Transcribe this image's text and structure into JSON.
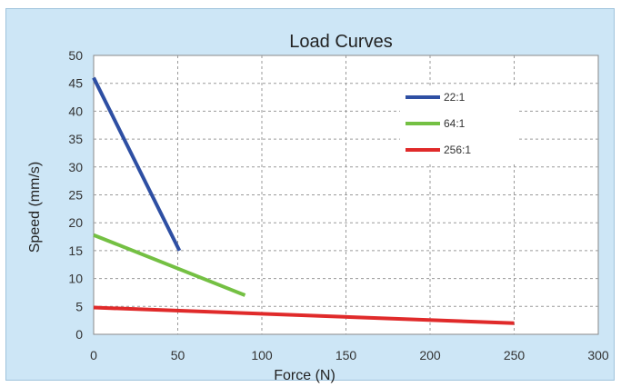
{
  "chart_data": {
    "type": "line",
    "title": "Load Curves",
    "xlabel": "Force (N)",
    "ylabel": "Speed (mm/s)",
    "xlim": [
      0,
      300
    ],
    "ylim": [
      0,
      50
    ],
    "xticks": [
      0,
      50,
      100,
      150,
      200,
      250,
      300
    ],
    "yticks": [
      0,
      5,
      10,
      15,
      20,
      25,
      30,
      35,
      40,
      45,
      50
    ],
    "grid": true,
    "legend_position": "top-right",
    "series": [
      {
        "name": "22:1",
        "color": "#2e4fa3",
        "x": [
          0,
          51
        ],
        "y": [
          46,
          15
        ]
      },
      {
        "name": "64:1",
        "color": "#74c043",
        "x": [
          0,
          90
        ],
        "y": [
          17.8,
          7
        ]
      },
      {
        "name": "256:1",
        "color": "#e02a2a",
        "x": [
          0,
          250
        ],
        "y": [
          4.8,
          2
        ]
      }
    ]
  }
}
